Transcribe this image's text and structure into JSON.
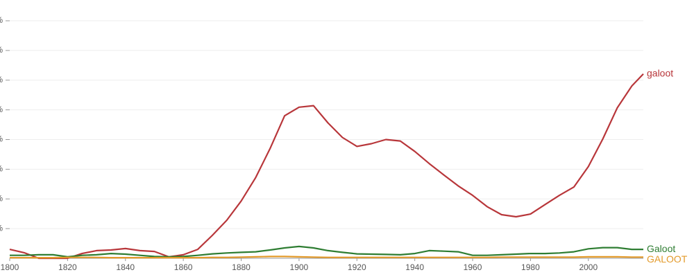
{
  "chart_data": {
    "type": "line",
    "x": [
      1800,
      1805,
      1810,
      1815,
      1820,
      1825,
      1830,
      1835,
      1840,
      1845,
      1850,
      1855,
      1860,
      1865,
      1870,
      1875,
      1880,
      1885,
      1890,
      1895,
      1900,
      1905,
      1910,
      1915,
      1920,
      1925,
      1930,
      1935,
      1940,
      1945,
      1950,
      1955,
      1960,
      1965,
      1970,
      1975,
      1980,
      1985,
      1990,
      1995,
      2000,
      2005,
      2010,
      2015,
      2019
    ],
    "xlim": [
      1800,
      2019
    ],
    "xticks": [
      1800,
      1820,
      1840,
      1860,
      1880,
      1900,
      1920,
      1940,
      1960,
      1980,
      2000
    ],
    "ylim": [
      0,
      8.7
    ],
    "yticks": [
      {
        "value": 1,
        "label": "%"
      },
      {
        "value": 2,
        "label": "%"
      },
      {
        "value": 3,
        "label": "%"
      },
      {
        "value": 4,
        "label": "%"
      },
      {
        "value": 5,
        "label": "%"
      },
      {
        "value": 6,
        "label": "%"
      },
      {
        "value": 7,
        "label": "%"
      },
      {
        "value": 8,
        "label": "%"
      }
    ],
    "grid": true,
    "series": [
      {
        "name": "galoot",
        "color": "#b8363a",
        "values": [
          0.3,
          0.19,
          0,
          0,
          0,
          0.16,
          0.26,
          0.28,
          0.33,
          0.26,
          0.23,
          0.05,
          0.12,
          0.3,
          0.77,
          1.28,
          1.93,
          2.72,
          3.7,
          4.8,
          5.09,
          5.14,
          4.56,
          4.07,
          3.77,
          3.86,
          4.0,
          3.95,
          3.6,
          3.19,
          2.81,
          2.44,
          2.12,
          1.74,
          1.47,
          1.4,
          1.49,
          1.81,
          2.12,
          2.4,
          3.09,
          4.02,
          5.07,
          5.8,
          6.21
        ]
      },
      {
        "name": "Galoot",
        "color": "#2e7d32",
        "values": [
          0.1,
          0.1,
          0.12,
          0.12,
          0.05,
          0.1,
          0.12,
          0.16,
          0.14,
          0.1,
          0.06,
          0.05,
          0.06,
          0.1,
          0.15,
          0.18,
          0.2,
          0.22,
          0.28,
          0.35,
          0.4,
          0.35,
          0.26,
          0.2,
          0.15,
          0.14,
          0.13,
          0.12,
          0.16,
          0.26,
          0.24,
          0.22,
          0.1,
          0.1,
          0.12,
          0.14,
          0.16,
          0.16,
          0.18,
          0.22,
          0.32,
          0.36,
          0.36,
          0.3,
          0.3
        ]
      },
      {
        "name": "GALOOT",
        "color": "#e39a2a",
        "values": [
          0.02,
          0.02,
          0.02,
          0.02,
          0.03,
          0.03,
          0.03,
          0.02,
          0.02,
          0.02,
          0.02,
          0.02,
          0.02,
          0.02,
          0.03,
          0.03,
          0.04,
          0.05,
          0.06,
          0.06,
          0.05,
          0.04,
          0.03,
          0.03,
          0.03,
          0.03,
          0.03,
          0.03,
          0.03,
          0.03,
          0.03,
          0.03,
          0.03,
          0.03,
          0.04,
          0.04,
          0.04,
          0.04,
          0.04,
          0.04,
          0.05,
          0.05,
          0.05,
          0.04,
          0.04
        ]
      }
    ]
  }
}
